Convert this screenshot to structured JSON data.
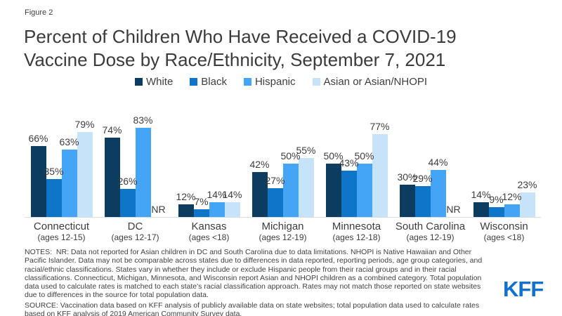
{
  "figure_label": "Figure 2",
  "title": "Percent of Children Who Have Received a COVID-19 Vaccine Dose by Race/Ethnicity, September 7, 2021",
  "chart_data": {
    "type": "bar",
    "title": "Percent of Children Who Have Received a COVID-19 Vaccine Dose by Race/Ethnicity, September 7, 2021",
    "categories": [
      "Connecticut",
      "DC",
      "Kansas",
      "Michigan",
      "Minnesota",
      "South Carolina",
      "Wisconsin"
    ],
    "category_sublabels": [
      "(ages 12-15)",
      "(ages 12-17)",
      "(ages <18)",
      "(ages 12-19)",
      "(ages 12-18)",
      "(ages 12-19)",
      "(ages <18)"
    ],
    "series": [
      {
        "name": "White",
        "color": "#0C3C60",
        "values": [
          66,
          74,
          12,
          42,
          50,
          30,
          14
        ]
      },
      {
        "name": "Black",
        "color": "#0E76C9",
        "values": [
          35,
          26,
          7,
          27,
          43,
          29,
          9
        ]
      },
      {
        "name": "Hispanic",
        "color": "#44A5F7",
        "values": [
          63,
          83,
          14,
          50,
          50,
          44,
          12
        ]
      },
      {
        "name": "Asian or Asian/NHOPI",
        "color": "#C7E3FA",
        "values": [
          79,
          null,
          14,
          55,
          77,
          null,
          23
        ]
      }
    ],
    "null_label": "NR",
    "value_suffix": "%",
    "ylim": [
      0,
      100
    ],
    "grid": false,
    "legend_position": "top",
    "data_labels": true
  },
  "notes": "NOTES:  NR: Data not reported for Asian children in DC and South Carolina due to data limitations. NHOPI is Native Hawaiian and Other Pacific Islander. Data may not be comparable across states due to differences in data reported, reporting periods, age group categories, and racial/ethnic classifications. States vary in whether they include or exclude Hispanic people from their racial groups and in their racial classifications. Connecticut, Michigan, Minnesota, and Wisconsin report Asian and NHOPI children as a combined category. Total population data used to calculate rates is matched to each state's racial classification approach. Rates may not match those reported on state websites due to differences in the source for total population data.",
  "source": "SOURCE: Vaccination data based on KFF analysis of publicly available data on state websites; total population data used to calculate rates based on KFF analysis of 2019 American Community Survey data.",
  "brand": {
    "logo_text": "KFF",
    "color": "#1071CE"
  }
}
